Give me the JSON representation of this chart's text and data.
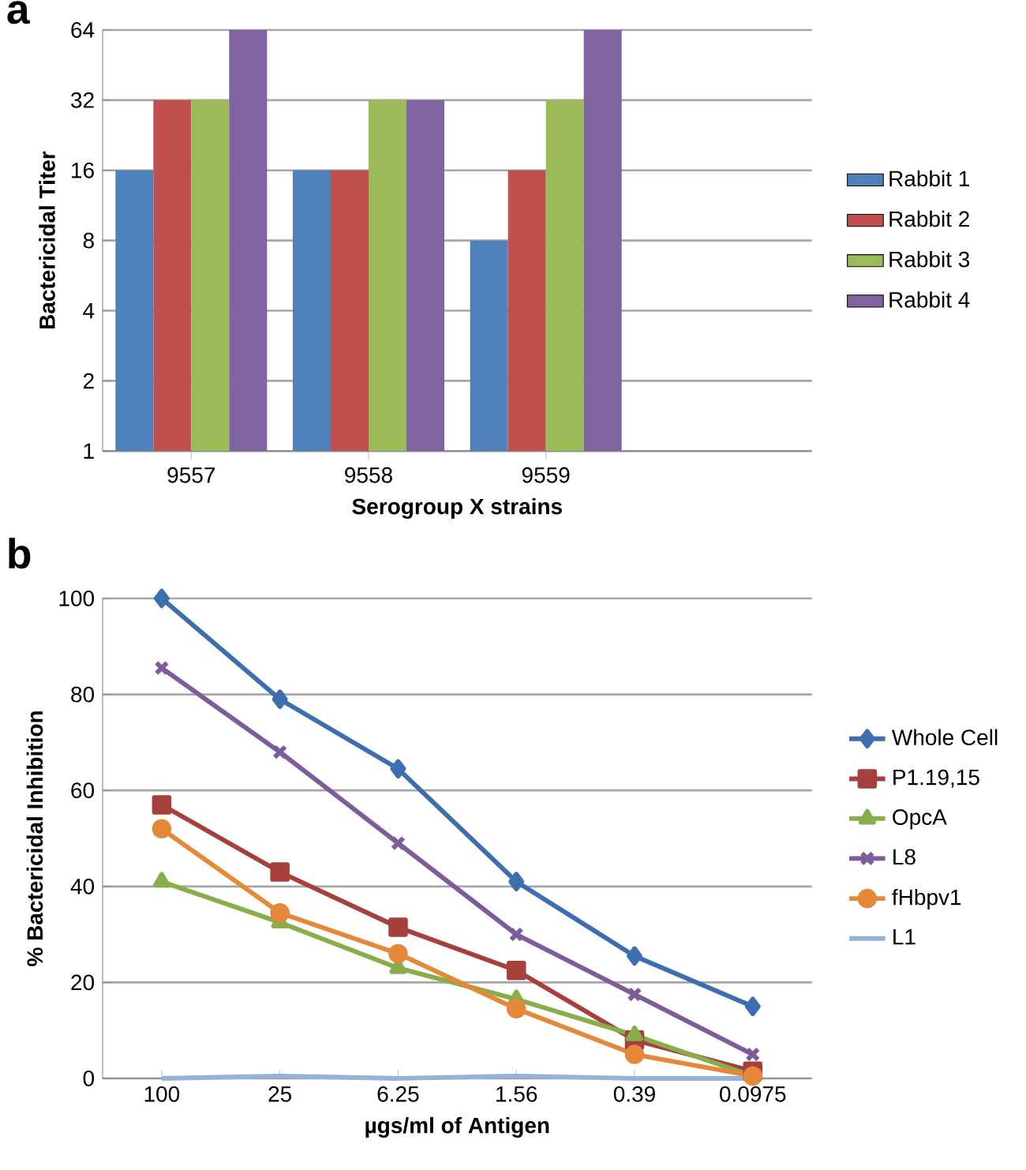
{
  "chart_data": [
    {
      "type": "bar",
      "title": "a",
      "xlabel": "Serogroup X strains",
      "ylabel": "Bactericidal Titer",
      "categories": [
        "9557",
        "9558",
        "9559"
      ],
      "log": "y",
      "ylim": [
        1,
        64
      ],
      "yticks": [
        1,
        2,
        4,
        8,
        16,
        32,
        64
      ],
      "grid": "y",
      "legend": "right",
      "series": [
        {
          "name": "Rabbit 1",
          "color": "#4f81bd",
          "values": [
            16,
            16,
            8
          ]
        },
        {
          "name": "Rabbit 2",
          "color": "#c0504d",
          "values": [
            32,
            16,
            16
          ]
        },
        {
          "name": "Rabbit 3",
          "color": "#9bbb59",
          "values": [
            32,
            32,
            32
          ]
        },
        {
          "name": "Rabbit 4",
          "color": "#8064a2",
          "values": [
            64,
            32,
            64
          ]
        }
      ]
    },
    {
      "type": "line",
      "title": "b",
      "xlabel": "µgs/ml of Antigen",
      "ylabel": "% Bactericidal Inhibition",
      "categories": [
        "100",
        "25",
        "6.25",
        "1.56",
        "0.39",
        "0.0975"
      ],
      "ylim": [
        0,
        100
      ],
      "yticks": [
        0,
        20,
        40,
        60,
        80,
        100
      ],
      "grid": "y",
      "legend": "right",
      "line_style": "solid",
      "series": [
        {
          "name": "Whole Cell",
          "color": "#3d6fb0",
          "marker": "diamond",
          "values": [
            100,
            79,
            64.5,
            41,
            25.5,
            15
          ]
        },
        {
          "name": "P1.19,15",
          "color": "#a5403d",
          "marker": "square",
          "values": [
            57,
            43,
            31.5,
            22.5,
            8,
            1.5
          ]
        },
        {
          "name": "OpcA",
          "color": "#8aad4c",
          "marker": "triangle",
          "values": [
            41,
            32.5,
            23,
            16.5,
            9,
            0.5
          ]
        },
        {
          "name": "L8",
          "color": "#7d5c9c",
          "marker": "cross",
          "values": [
            85.5,
            68,
            49,
            30,
            17.5,
            5
          ]
        },
        {
          "name": "fHbpv1",
          "color": "#e6883a",
          "marker": "circle",
          "values": [
            52,
            34.5,
            26,
            14.5,
            5,
            0.5
          ]
        },
        {
          "name": "L1",
          "color": "#95b3d7",
          "marker": "none",
          "values": [
            0,
            0.5,
            0,
            0.5,
            0,
            0
          ]
        }
      ]
    }
  ]
}
